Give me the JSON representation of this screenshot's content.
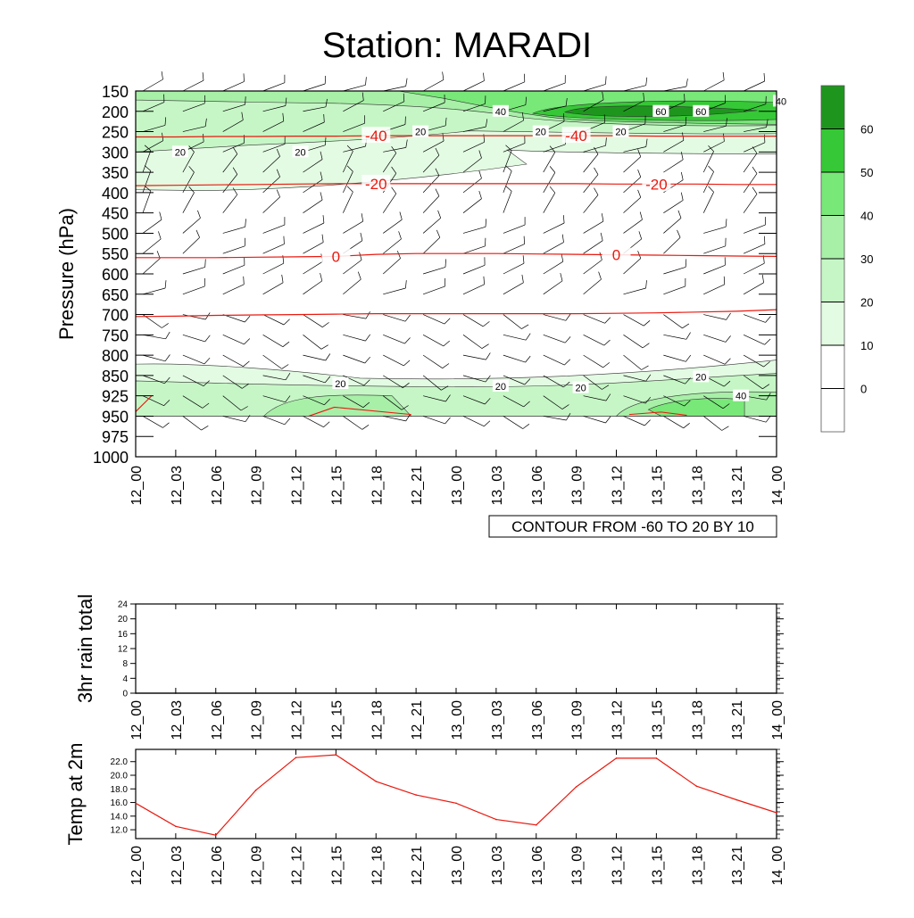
{
  "title": "Station: MARADI",
  "colors": {
    "axis": "#000000",
    "temp_line": "#e8190f",
    "wind": "#000000",
    "shade": [
      "#ffffff",
      "#ffffff",
      "#e3fbe3",
      "#c6f6c6",
      "#a8efa8",
      "#78e878",
      "#36c836",
      "#1e961e"
    ]
  },
  "chart_data": [
    {
      "type": "heatmap",
      "title": "Station: MARADI",
      "ylabel": "Pressure (hPa)",
      "xlabel": "",
      "x_ticks": [
        "12_00",
        "12_03",
        "12_06",
        "12_09",
        "12_12",
        "12_15",
        "12_18",
        "12_21",
        "13_00",
        "13_03",
        "13_06",
        "13_09",
        "13_12",
        "13_15",
        "13_18",
        "13_21",
        "14_00"
      ],
      "pressure_levels": [
        150,
        200,
        250,
        300,
        350,
        400,
        450,
        500,
        550,
        600,
        650,
        700,
        750,
        800,
        850,
        925,
        950,
        975,
        1000
      ],
      "ylim": [
        1000,
        150
      ],
      "colorbar": {
        "levels": [
          0,
          10,
          20,
          30,
          40,
          50,
          60
        ],
        "labels": [
          "0",
          "10",
          "20",
          "30",
          "40",
          "50",
          "60"
        ]
      },
      "shaded_field_contours": [
        {
          "value": 20,
          "level_hpa": 250,
          "label": "20",
          "at_time": "12_21"
        },
        {
          "value": 20,
          "level_hpa": 300,
          "label": "20",
          "at_time": "12_03"
        },
        {
          "value": 20,
          "level_hpa": 300,
          "label": "20",
          "at_time": "12_12"
        },
        {
          "value": 20,
          "level_hpa": 250,
          "label": "20",
          "at_time": "13_06"
        },
        {
          "value": 20,
          "level_hpa": 250,
          "label": "20",
          "at_time": "13_12"
        },
        {
          "value": 40,
          "level_hpa": 200,
          "label": "40",
          "at_time": "13_03"
        },
        {
          "value": 40,
          "level_hpa": 200,
          "label": "40",
          "at_time": "13_15"
        },
        {
          "value": 40,
          "level_hpa": 175,
          "label": "40",
          "at_time": "14_00"
        },
        {
          "value": 60,
          "level_hpa": 200,
          "label": "60",
          "at_time": "13_15"
        },
        {
          "value": 60,
          "level_hpa": 200,
          "label": "60",
          "at_time": "13_18"
        },
        {
          "value": 20,
          "level_hpa": 880,
          "label": "20",
          "at_time": "12_15"
        },
        {
          "value": 20,
          "level_hpa": 890,
          "label": "20",
          "at_time": "13_03"
        },
        {
          "value": 20,
          "level_hpa": 895,
          "label": "20",
          "at_time": "13_09"
        },
        {
          "value": 20,
          "level_hpa": 855,
          "label": "20",
          "at_time": "13_18"
        },
        {
          "value": 40,
          "level_hpa": 925,
          "label": "40",
          "at_time": "13_21"
        }
      ],
      "temperature_contours": [
        {
          "value": -40,
          "label": "-40",
          "levels_hpa": [
            263,
            263,
            262,
            262,
            261,
            261,
            260,
            260,
            260,
            260,
            260,
            260,
            260,
            261,
            261,
            261,
            261
          ],
          "label_times": [
            "12_18",
            "13_09"
          ]
        },
        {
          "value": -20,
          "label": "-20",
          "levels_hpa": [
            383,
            382,
            381,
            380,
            379,
            378,
            378,
            378,
            378,
            378,
            378,
            378,
            379,
            379,
            379,
            380,
            380
          ],
          "label_times": [
            "12_18",
            "13_15"
          ]
        },
        {
          "value": 0,
          "label": "0",
          "levels_hpa": [
            560,
            560,
            560,
            559,
            558,
            557,
            552,
            550,
            550,
            550,
            551,
            552,
            553,
            554,
            555,
            556,
            557
          ],
          "label_times": [
            "12_15",
            "13_12"
          ]
        },
        {
          "value": 20,
          "label": "",
          "levels_hpa": [
            705,
            704,
            702,
            701,
            700,
            699,
            698,
            698,
            698,
            698,
            698,
            698,
            697,
            696,
            694,
            692,
            688
          ]
        }
      ],
      "legend_text": "CONTOUR FROM -60 TO 20 BY 10"
    },
    {
      "type": "line",
      "title": "",
      "ylabel": "3hr rain total",
      "xlabel": "",
      "categories": [
        "12_00",
        "12_03",
        "12_06",
        "12_09",
        "12_12",
        "12_15",
        "12_18",
        "12_21",
        "13_00",
        "13_03",
        "13_06",
        "13_09",
        "13_12",
        "13_15",
        "13_18",
        "13_21",
        "14_00"
      ],
      "values": [
        0,
        0,
        0,
        0,
        0,
        0,
        0,
        0,
        0,
        0,
        0,
        0,
        0,
        0,
        0,
        0,
        0
      ],
      "ylim": [
        0,
        24
      ],
      "y_ticks": [
        "0",
        "4",
        "8",
        "12",
        "16",
        "20",
        "24"
      ]
    },
    {
      "type": "line",
      "title": "",
      "ylabel": "Temp at 2m",
      "xlabel": "",
      "categories": [
        "12_00",
        "12_03",
        "12_06",
        "12_09",
        "12_12",
        "12_15",
        "12_18",
        "12_21",
        "13_00",
        "13_03",
        "13_06",
        "13_09",
        "13_12",
        "13_15",
        "13_18",
        "13_21",
        "14_00"
      ],
      "values": [
        15.9,
        12.5,
        11.2,
        17.8,
        22.6,
        23.0,
        19.1,
        17.1,
        15.9,
        13.5,
        12.7,
        18.3,
        22.5,
        22.5,
        18.4,
        16.4,
        14.5
      ],
      "ylim": [
        10.7,
        23.8
      ],
      "y_ticks": [
        "12.0",
        "14.0",
        "16.0",
        "18.0",
        "20.0",
        "22.0"
      ]
    }
  ]
}
